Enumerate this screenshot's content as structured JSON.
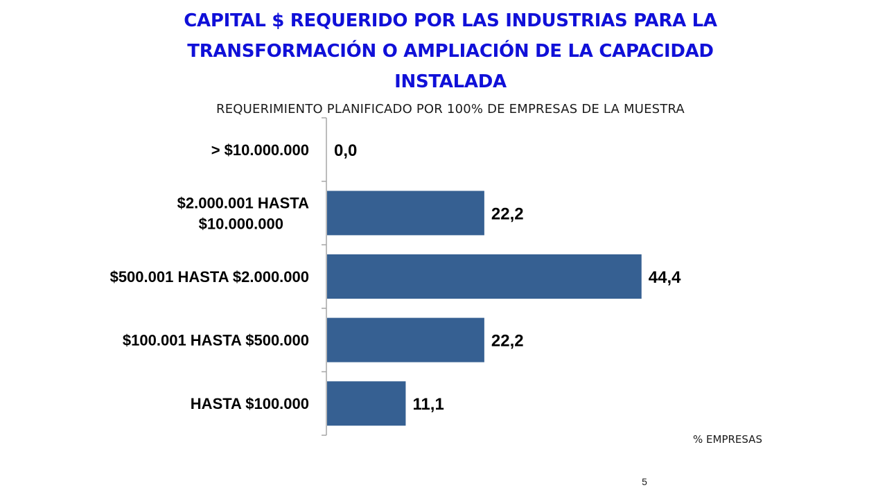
{
  "slide": {
    "title": "CAPITAL $ REQUERIDO POR LAS INDUSTRIAS PARA LA TRANSFORMACIÓN O AMPLIACIÓN DE LA CAPACIDAD INSTALADA",
    "subtitle": "REQUERIMIENTO PLANIFICADO POR 100% DE EMPRESAS DE LA MUESTRA",
    "page_number": "5"
  },
  "chart_data": {
    "type": "bar",
    "orientation": "horizontal",
    "title": "CAPITAL $ REQUERIDO POR LAS INDUSTRIAS PARA LA TRANSFORMACIÓN O AMPLIACIÓN DE LA CAPACIDAD INSTALADA",
    "subtitle": "REQUERIMIENTO PLANIFICADO POR 100% DE EMPRESAS DE LA MUESTRA",
    "xlabel": "% EMPRESAS",
    "ylabel": "",
    "categories": [
      "> $10.000.000",
      "$2.000.001 HASTA $10.000.000",
      "$500.001 HASTA $2.000.000",
      "$100.001 HASTA $500.000",
      "HASTA $100.000"
    ],
    "category_lines": [
      [
        "> $10.000.000"
      ],
      [
        "$2.000.001 HASTA",
        "$10.000.000"
      ],
      [
        "$500.001 HASTA $2.000.000"
      ],
      [
        "$100.001 HASTA $500.000"
      ],
      [
        "HASTA $100.000"
      ]
    ],
    "values": [
      0.0,
      22.2,
      44.4,
      22.2,
      11.1
    ],
    "value_labels": [
      "0,0",
      "22,2",
      "44,4",
      "22,2",
      "11,1"
    ],
    "xlim": [
      0,
      50
    ],
    "grid": false,
    "legend": "none",
    "bar_color": "#366092",
    "axis_color": "#a6a6a6"
  }
}
